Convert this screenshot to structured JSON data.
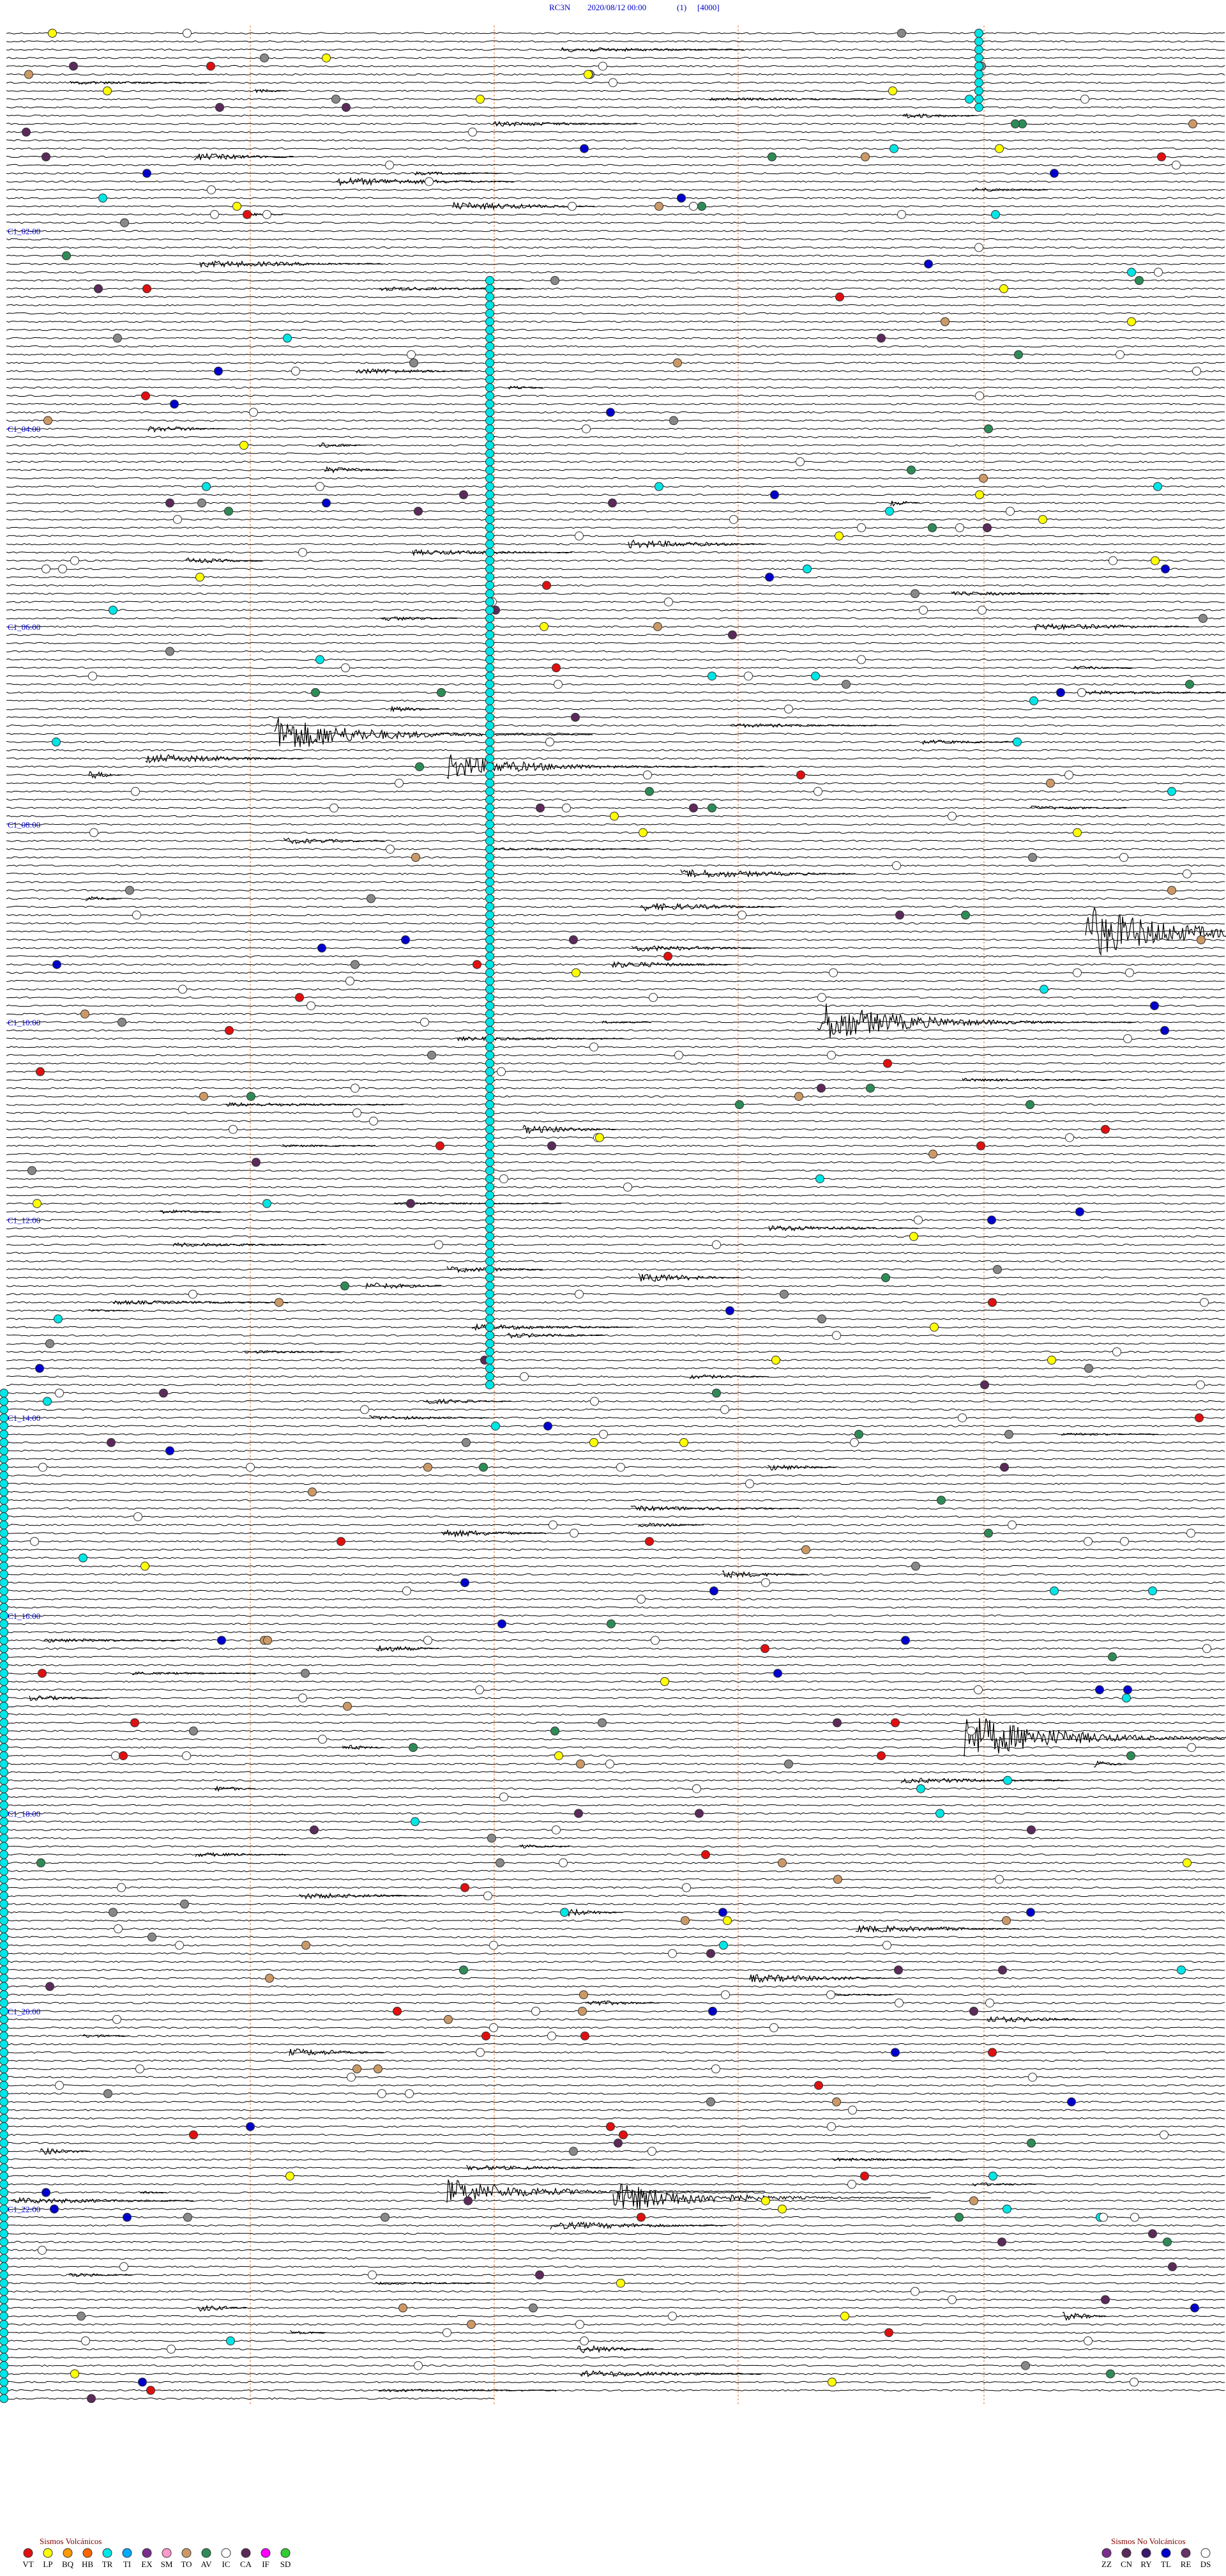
{
  "header": {
    "station": "RC3N",
    "datetime": "2020/08/12 00:00",
    "index": "(1)",
    "scale": "[4000]"
  },
  "time_labels": [
    "C1_02:00",
    "C1_04:00",
    "C1_06:00",
    "C1_08:00",
    "C1_10:00",
    "C1_12:00",
    "C1_14:00",
    "C1_16:00",
    "C1_18:00",
    "C1_20:00",
    "C1_22:00"
  ],
  "legend_volcanic": {
    "title": "Sismos Volcánicos",
    "items": [
      {
        "code": "VT",
        "color": "#e01010"
      },
      {
        "code": "LP",
        "color": "#ffff00"
      },
      {
        "code": "BQ",
        "color": "#ff9900"
      },
      {
        "code": "HB",
        "color": "#ff6600"
      },
      {
        "code": "TR",
        "color": "#00e5e5"
      },
      {
        "code": "TI",
        "color": "#00aaff"
      },
      {
        "code": "EX",
        "color": "#7b2d8e"
      },
      {
        "code": "SM",
        "color": "#ff99cc"
      },
      {
        "code": "TO",
        "color": "#cc9966"
      },
      {
        "code": "AV",
        "color": "#2e8b57"
      },
      {
        "code": "IC",
        "color": "#ffffff"
      },
      {
        "code": "CA",
        "color": "#5a2a5a"
      },
      {
        "code": "IF",
        "color": "#ff00ff"
      },
      {
        "code": "SD",
        "color": "#33cc33"
      }
    ]
  },
  "legend_nonvolcanic": {
    "title": "Sismos No Volcánicos",
    "items": [
      {
        "code": "ZZ",
        "color": "#7b2d8e"
      },
      {
        "code": "CN",
        "color": "#5a2a5a"
      },
      {
        "code": "RY",
        "color": "#3a1a6a"
      },
      {
        "code": "TL",
        "color": "#0000cc"
      },
      {
        "code": "RE",
        "color": "#663366"
      },
      {
        "code": "DS",
        "color": "#ffffff"
      }
    ]
  }
}
